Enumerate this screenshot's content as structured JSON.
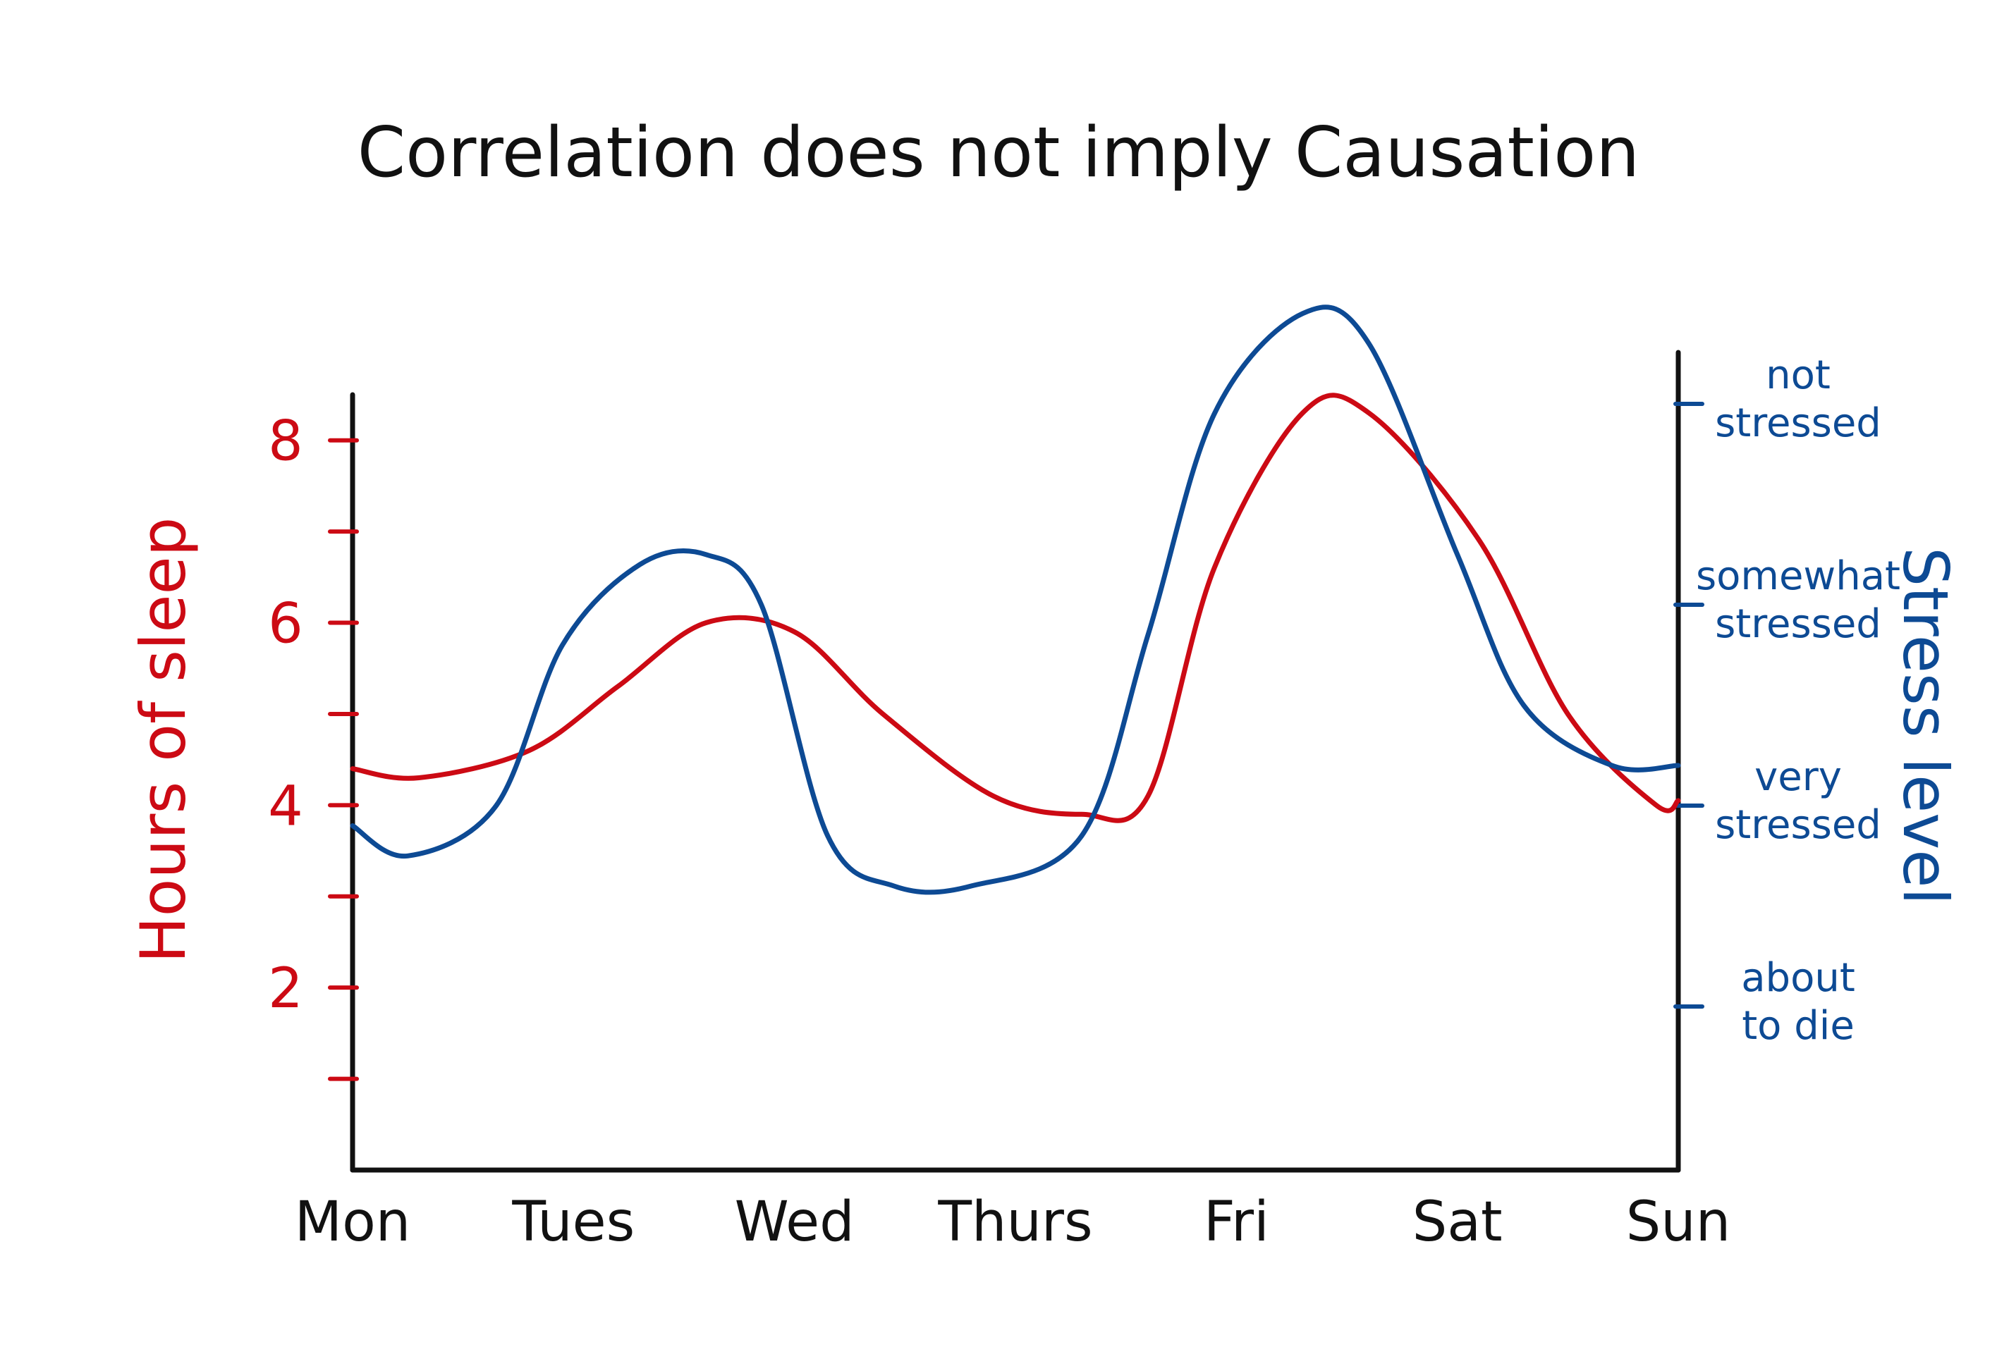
{
  "chart_data": {
    "type": "line",
    "title": "Correlation does not imply Causation",
    "x_categories": [
      "Mon",
      "Tues",
      "Wed",
      "Thurs",
      "Fri",
      "Sat",
      "Sun"
    ],
    "y_left": {
      "label": "Hours of sleep",
      "ticks": [
        "2",
        "4",
        "6",
        "8"
      ],
      "range": [
        0,
        8.5
      ],
      "color": "#cc0a14"
    },
    "y_right": {
      "label": "Stress level",
      "ticks": [
        [
          "about",
          "to die"
        ],
        [
          "very",
          "stressed"
        ],
        [
          "somewhat",
          "stressed"
        ],
        [
          "not",
          "stressed"
        ]
      ],
      "color": "#0d4a94"
    },
    "series": [
      {
        "name": "Hours of sleep",
        "axis": "left",
        "color": "#cc0a14",
        "x": [
          0,
          0.3,
          0.8,
          1.2,
          1.6,
          2.0,
          2.4,
          2.9,
          3.3,
          3.6,
          3.9,
          4.3,
          4.6,
          5.1,
          5.5,
          5.9,
          6.0
        ],
        "y": [
          4.4,
          4.3,
          4.6,
          5.3,
          6.0,
          5.9,
          5.0,
          4.1,
          3.9,
          4.1,
          6.6,
          8.3,
          8.3,
          6.9,
          5.0,
          4.0,
          4.05
        ]
      },
      {
        "name": "Stress level",
        "axis": "right",
        "color": "#0d4a94",
        "x": [
          0,
          0.25,
          0.65,
          0.95,
          1.3,
          1.6,
          1.85,
          2.15,
          2.45,
          2.8,
          3.3,
          3.6,
          3.9,
          4.3,
          4.6,
          5.0,
          5.3,
          5.7,
          6.0
        ],
        "y": [
          1.9,
          1.75,
          2.0,
          2.8,
          3.2,
          3.25,
          3.0,
          1.85,
          1.6,
          1.6,
          1.85,
          2.85,
          3.95,
          4.45,
          4.3,
          3.25,
          2.5,
          2.2,
          2.2
        ]
      }
    ],
    "grid": false,
    "legend": "none"
  }
}
